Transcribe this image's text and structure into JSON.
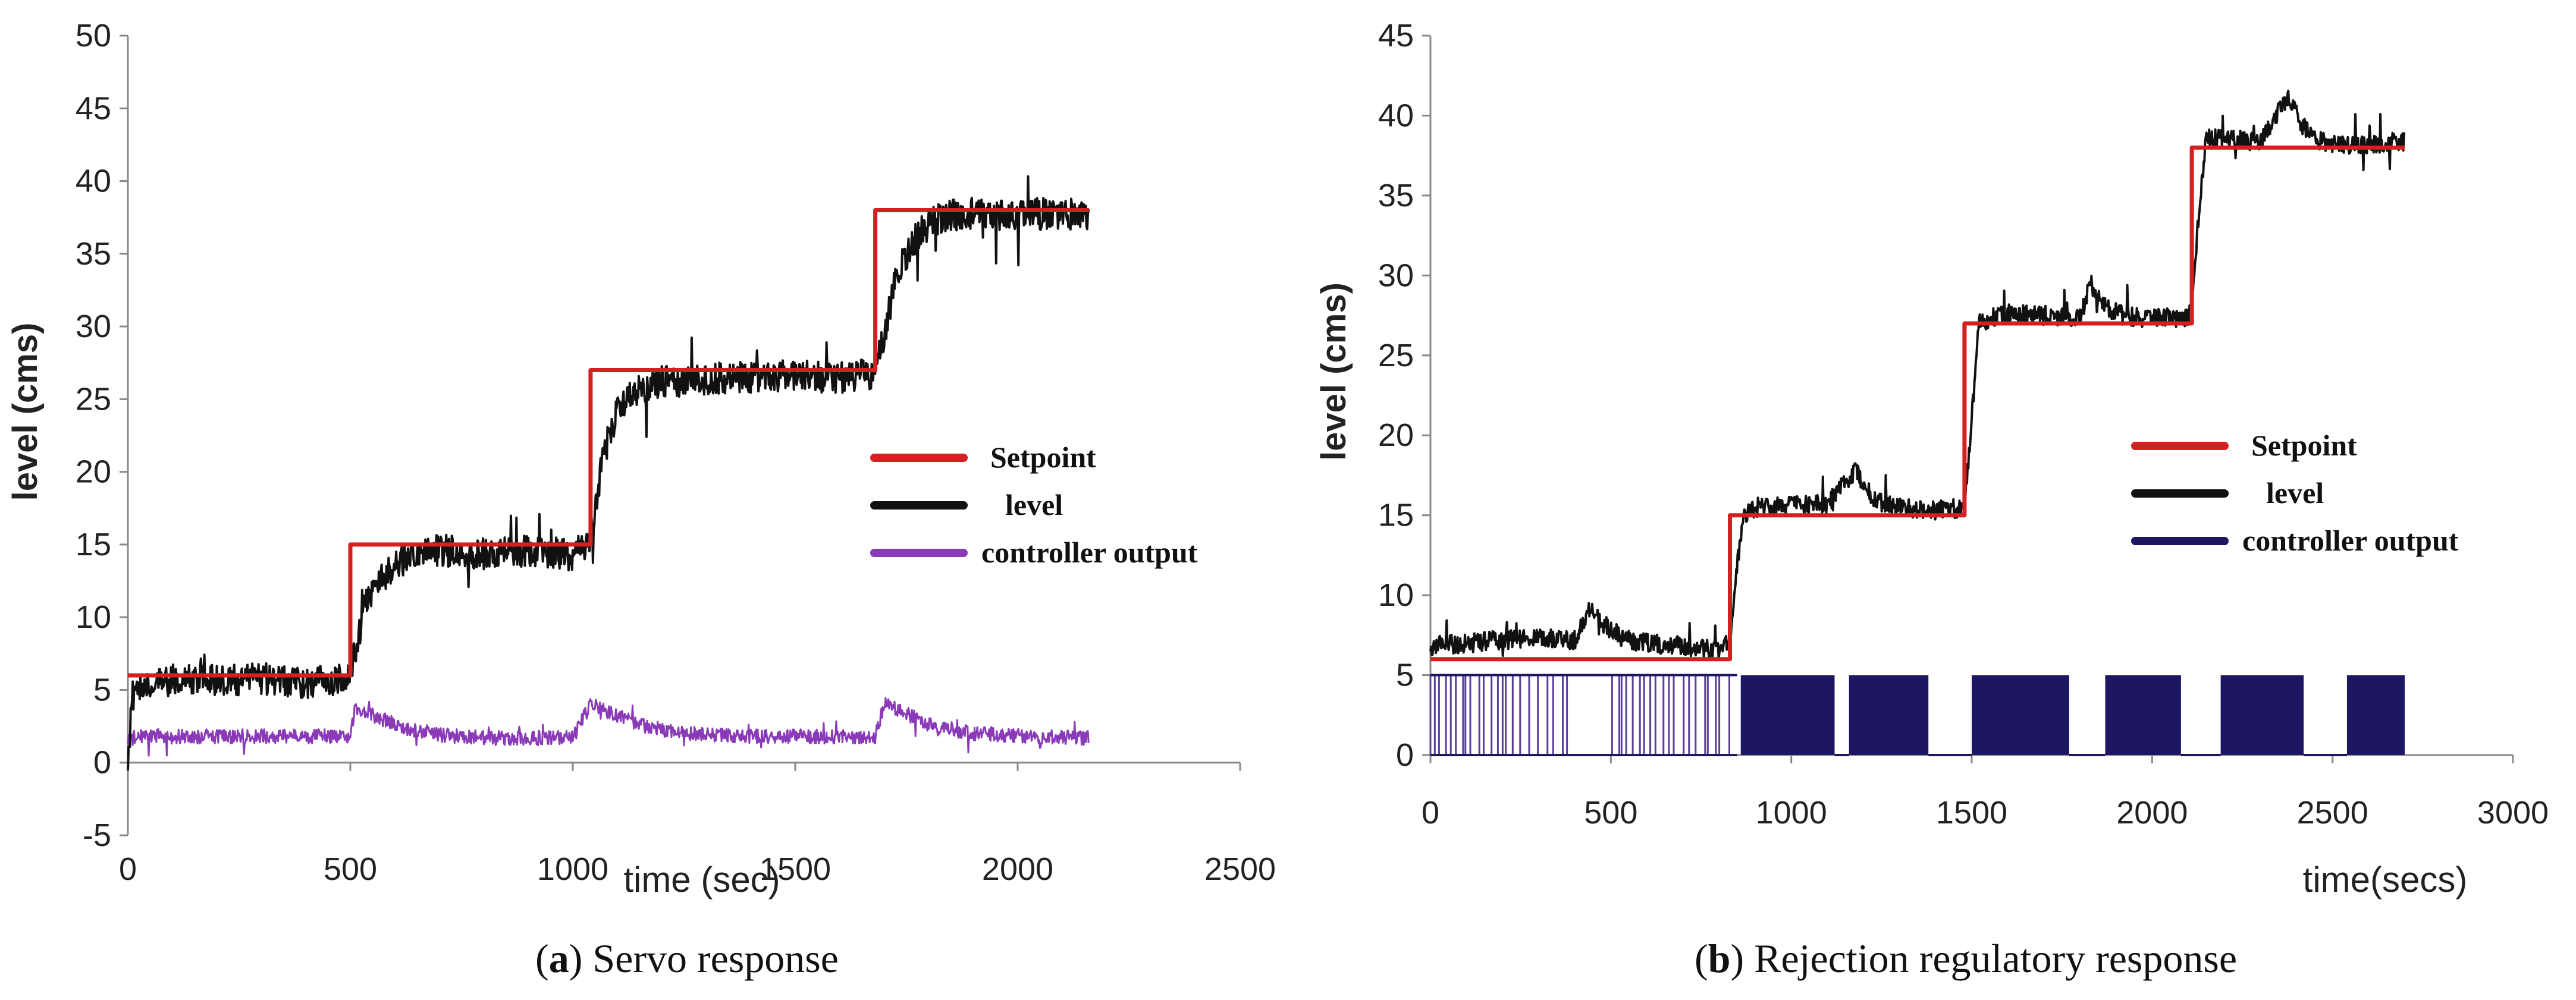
{
  "chart_data": [
    {
      "id": "a",
      "type": "line",
      "title": "",
      "caption_letter": "a",
      "caption_open": "(",
      "caption_close": ")",
      "caption_text": " Servo response",
      "xlabel": "time (sec)",
      "ylabel": "level (cms)",
      "xlim": [
        0,
        2500
      ],
      "ylim": [
        -5,
        50
      ],
      "xticks": [
        0,
        500,
        1000,
        1500,
        2000,
        2500
      ],
      "yticks": [
        -5,
        0,
        5,
        10,
        15,
        20,
        25,
        30,
        35,
        40,
        45,
        50
      ],
      "legend_position": "center-right",
      "series": [
        {
          "name": "Setpoint",
          "color": "#d42020",
          "x": [
            0,
            500,
            500,
            1040,
            1040,
            1680,
            1680,
            2160
          ],
          "y": [
            6,
            6,
            15,
            15,
            27,
            27,
            38,
            38
          ]
        },
        {
          "name": "level",
          "color": "#111111",
          "x": [
            0,
            10,
            30,
            100,
            200,
            300,
            400,
            490,
            510,
            530,
            560,
            600,
            650,
            700,
            800,
            900,
            1000,
            1040,
            1060,
            1080,
            1100,
            1130,
            1160,
            1200,
            1300,
            1400,
            1500,
            1600,
            1680,
            1700,
            1720,
            1750,
            1780,
            1810,
            1850,
            1900,
            2000,
            2100,
            2160
          ],
          "y": [
            0,
            4.5,
            5.5,
            5.7,
            5.6,
            5.8,
            5.5,
            5.8,
            7.5,
            10.5,
            12.5,
            13.6,
            14.2,
            14.6,
            14.4,
            14.6,
            14.3,
            15.5,
            19.5,
            22.5,
            24,
            25.2,
            25.8,
            26.2,
            26.4,
            26.5,
            26.6,
            26.5,
            26.8,
            29.5,
            32.5,
            35,
            36.5,
            37.2,
            37.6,
            37.8,
            37.7,
            37.8,
            37.6
          ],
          "noise_amplitude": 1.1
        },
        {
          "name": "controller output",
          "color": "#8a3ab8",
          "x": [
            0,
            20,
            500,
            510,
            560,
            620,
            700,
            800,
            1000,
            1040,
            1060,
            1100,
            1160,
            1250,
            1400,
            1680,
            1700,
            1740,
            1800,
            1900,
            2160
          ],
          "y": [
            1.5,
            1.8,
            1.8,
            3.8,
            3.1,
            2.4,
            1.9,
            1.7,
            1.7,
            4,
            3.8,
            3.2,
            2.5,
            2,
            1.8,
            1.8,
            4,
            3.5,
            2.6,
            2,
            1.7
          ],
          "noise_amplitude": 0.5
        }
      ]
    },
    {
      "id": "b",
      "type": "line",
      "title": "",
      "caption_letter": "b",
      "caption_open": "(",
      "caption_close": ")",
      "caption_text": " Rejection regulatory response",
      "xlabel": "time(secs)",
      "ylabel": "level (cms)",
      "xlim": [
        0,
        3000
      ],
      "ylim": [
        0,
        45
      ],
      "xticks": [
        0,
        500,
        1000,
        1500,
        2000,
        2500,
        3000
      ],
      "yticks": [
        0,
        5,
        10,
        15,
        20,
        25,
        30,
        35,
        40,
        45
      ],
      "legend_position": "center-right",
      "series": [
        {
          "name": "Setpoint",
          "color": "#d42020",
          "x": [
            0,
            830,
            830,
            1480,
            1480,
            2110,
            2110,
            2700
          ],
          "y": [
            6,
            6,
            15,
            15,
            27,
            27,
            38,
            38
          ]
        },
        {
          "name": "level",
          "color": "#111111",
          "x": [
            0,
            100,
            200,
            300,
            400,
            440,
            480,
            540,
            600,
            700,
            800,
            830,
            850,
            870,
            900,
            1000,
            1100,
            1180,
            1210,
            1260,
            1300,
            1400,
            1480,
            1500,
            1520,
            1560,
            1600,
            1700,
            1800,
            1830,
            1860,
            1920,
            2000,
            2100,
            2110,
            2130,
            2150,
            2200,
            2300,
            2380,
            2410,
            2450,
            2500,
            2600,
            2700
          ],
          "y": [
            6.8,
            7,
            7.2,
            7.4,
            7.2,
            9.2,
            8.2,
            7.2,
            7,
            6.8,
            6.6,
            7,
            12,
            15,
            15.5,
            15.6,
            15.7,
            17.8,
            16.5,
            15.6,
            15.5,
            15.3,
            15.5,
            21,
            27,
            27.4,
            27.6,
            27.5,
            27.4,
            29.5,
            28.2,
            27.5,
            27.3,
            27.4,
            28,
            34,
            38.6,
            38.5,
            38.4,
            41.3,
            39.6,
            38.5,
            38.2,
            38.2,
            38.4
          ],
          "noise_amplitude": 0.6
        },
        {
          "name": "controller output",
          "color": "#1c1663",
          "x": [
            0,
            850,
            860,
            1120,
            1160,
            1380,
            1500,
            1770,
            1870,
            2080,
            2190,
            2420,
            2540,
            2700
          ],
          "y": [
            5,
            0,
            5,
            5,
            0,
            5,
            5,
            0,
            5,
            5,
            0,
            5,
            5,
            5
          ],
          "pwm_segments_on": [
            [
              860,
              1120
            ],
            [
              1160,
              1380
            ],
            [
              1500,
              1770
            ],
            [
              1870,
              2080
            ],
            [
              2190,
              2420
            ],
            [
              2540,
              2700
            ]
          ],
          "pwm_on_level": 5,
          "pwm_off_level": 0
        }
      ]
    }
  ]
}
